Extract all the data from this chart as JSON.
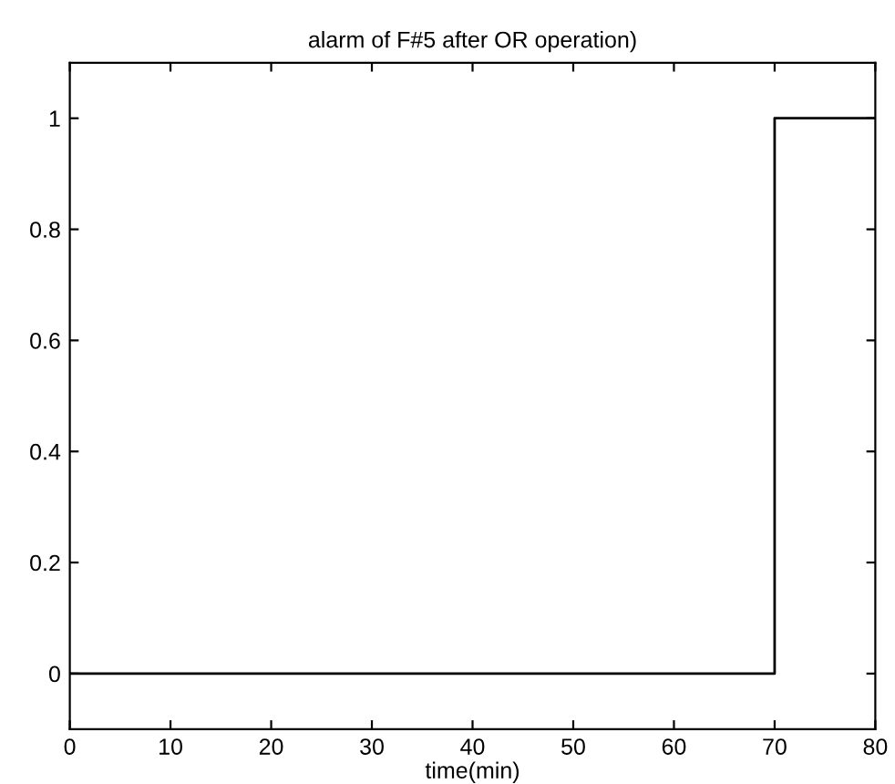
{
  "chart_data": {
    "type": "step",
    "title": "alarm of F#5 after OR operation)",
    "xlabel": "time(min)",
    "x": [
      0,
      70,
      80
    ],
    "series": [
      {
        "color": "#000000",
        "values": [
          0,
          1,
          1
        ]
      }
    ],
    "xlim": [
      0,
      80
    ],
    "xticks": [
      0,
      10,
      20,
      30,
      40,
      50,
      60,
      70,
      80
    ],
    "ylim": [
      -0.1,
      1.1
    ],
    "yticks": [
      0,
      0.2,
      0.4,
      0.6,
      0.8,
      1
    ],
    "marker": "none",
    "line_style": "solid"
  }
}
